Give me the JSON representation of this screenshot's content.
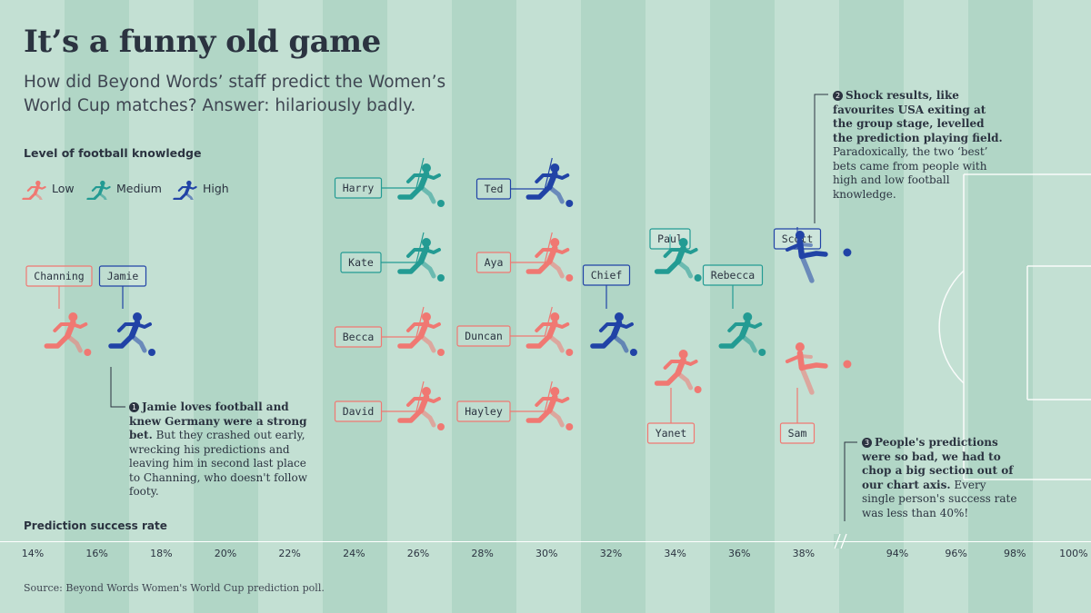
{
  "title": "It’s a funny old game",
  "subtitle": "How did Beyond Words’ staff predict the Women’s World Cup matches? Answer: hilariously badly.",
  "legend": {
    "title": "Level of football knowledge",
    "items": [
      {
        "key": "low",
        "label": "Low"
      },
      {
        "key": "medium",
        "label": "Medium"
      },
      {
        "key": "high",
        "label": "High"
      }
    ]
  },
  "colors": {
    "low": "#f07872",
    "medium": "#239b93",
    "high": "#2143a6",
    "stripe_light": "#c3e0d3",
    "stripe_dark": "#b1d6c6",
    "text": "#2b3340"
  },
  "notes": {
    "n1": {
      "num": "1",
      "bold": "Jamie loves football and knew Germany were a strong bet.",
      "text": " But they crashed out early, wrecking his predictions and leaving him in second last place to Channing, who doesn't follow footy."
    },
    "n2": {
      "num": "2",
      "bold": "Shock results, like favourites USA exiting at the group stage, levelled the prediction playing field.",
      "text": " Paradoxically, the two ‘best’ bets came from people with high and low football knowledge."
    },
    "n3": {
      "num": "3",
      "bold": "People's predictions were so bad, we had to chop a big section out of our chart axis.",
      "text": " Every single person's success rate was less than 40%!"
    }
  },
  "source": "Source: Beyond Words Women's World Cup prediction poll.",
  "chart_data": {
    "type": "scatter",
    "title": "It’s a funny old game",
    "xlabel": "Prediction success rate",
    "ylabel": "",
    "x_ticks": [
      "14%",
      "16%",
      "18%",
      "20%",
      "22%",
      "24%",
      "26%",
      "28%",
      "30%",
      "32%",
      "34%",
      "36%",
      "38%",
      "94%",
      "96%",
      "98%",
      "100%"
    ],
    "axis_break": "between 38% and 94%",
    "points": [
      {
        "name": "Channing",
        "knowledge": "low",
        "x": 15,
        "row": 0
      },
      {
        "name": "Jamie",
        "knowledge": "high",
        "x": 17,
        "row": 0
      },
      {
        "name": "Harry",
        "knowledge": "medium",
        "x": 26,
        "row": 2
      },
      {
        "name": "Kate",
        "knowledge": "medium",
        "x": 26,
        "row": 1
      },
      {
        "name": "Becca",
        "knowledge": "low",
        "x": 26,
        "row": 0
      },
      {
        "name": "David",
        "knowledge": "low",
        "x": 26,
        "row": -1
      },
      {
        "name": "Ted",
        "knowledge": "high",
        "x": 30,
        "row": 2
      },
      {
        "name": "Aya",
        "knowledge": "low",
        "x": 30,
        "row": 1
      },
      {
        "name": "Duncan",
        "knowledge": "low",
        "x": 30,
        "row": 0
      },
      {
        "name": "Hayley",
        "knowledge": "low",
        "x": 30,
        "row": -1
      },
      {
        "name": "Chief",
        "knowledge": "high",
        "x": 32,
        "row": 0
      },
      {
        "name": "Paul",
        "knowledge": "medium",
        "x": 34,
        "row": 1
      },
      {
        "name": "Yanet",
        "knowledge": "low",
        "x": 34,
        "row": -0.5
      },
      {
        "name": "Rebecca",
        "knowledge": "medium",
        "x": 36,
        "row": 0
      },
      {
        "name": "Scott",
        "knowledge": "high",
        "x": 38,
        "row": 1
      },
      {
        "name": "Sam",
        "knowledge": "low",
        "x": 38,
        "row": -0.5
      }
    ]
  }
}
